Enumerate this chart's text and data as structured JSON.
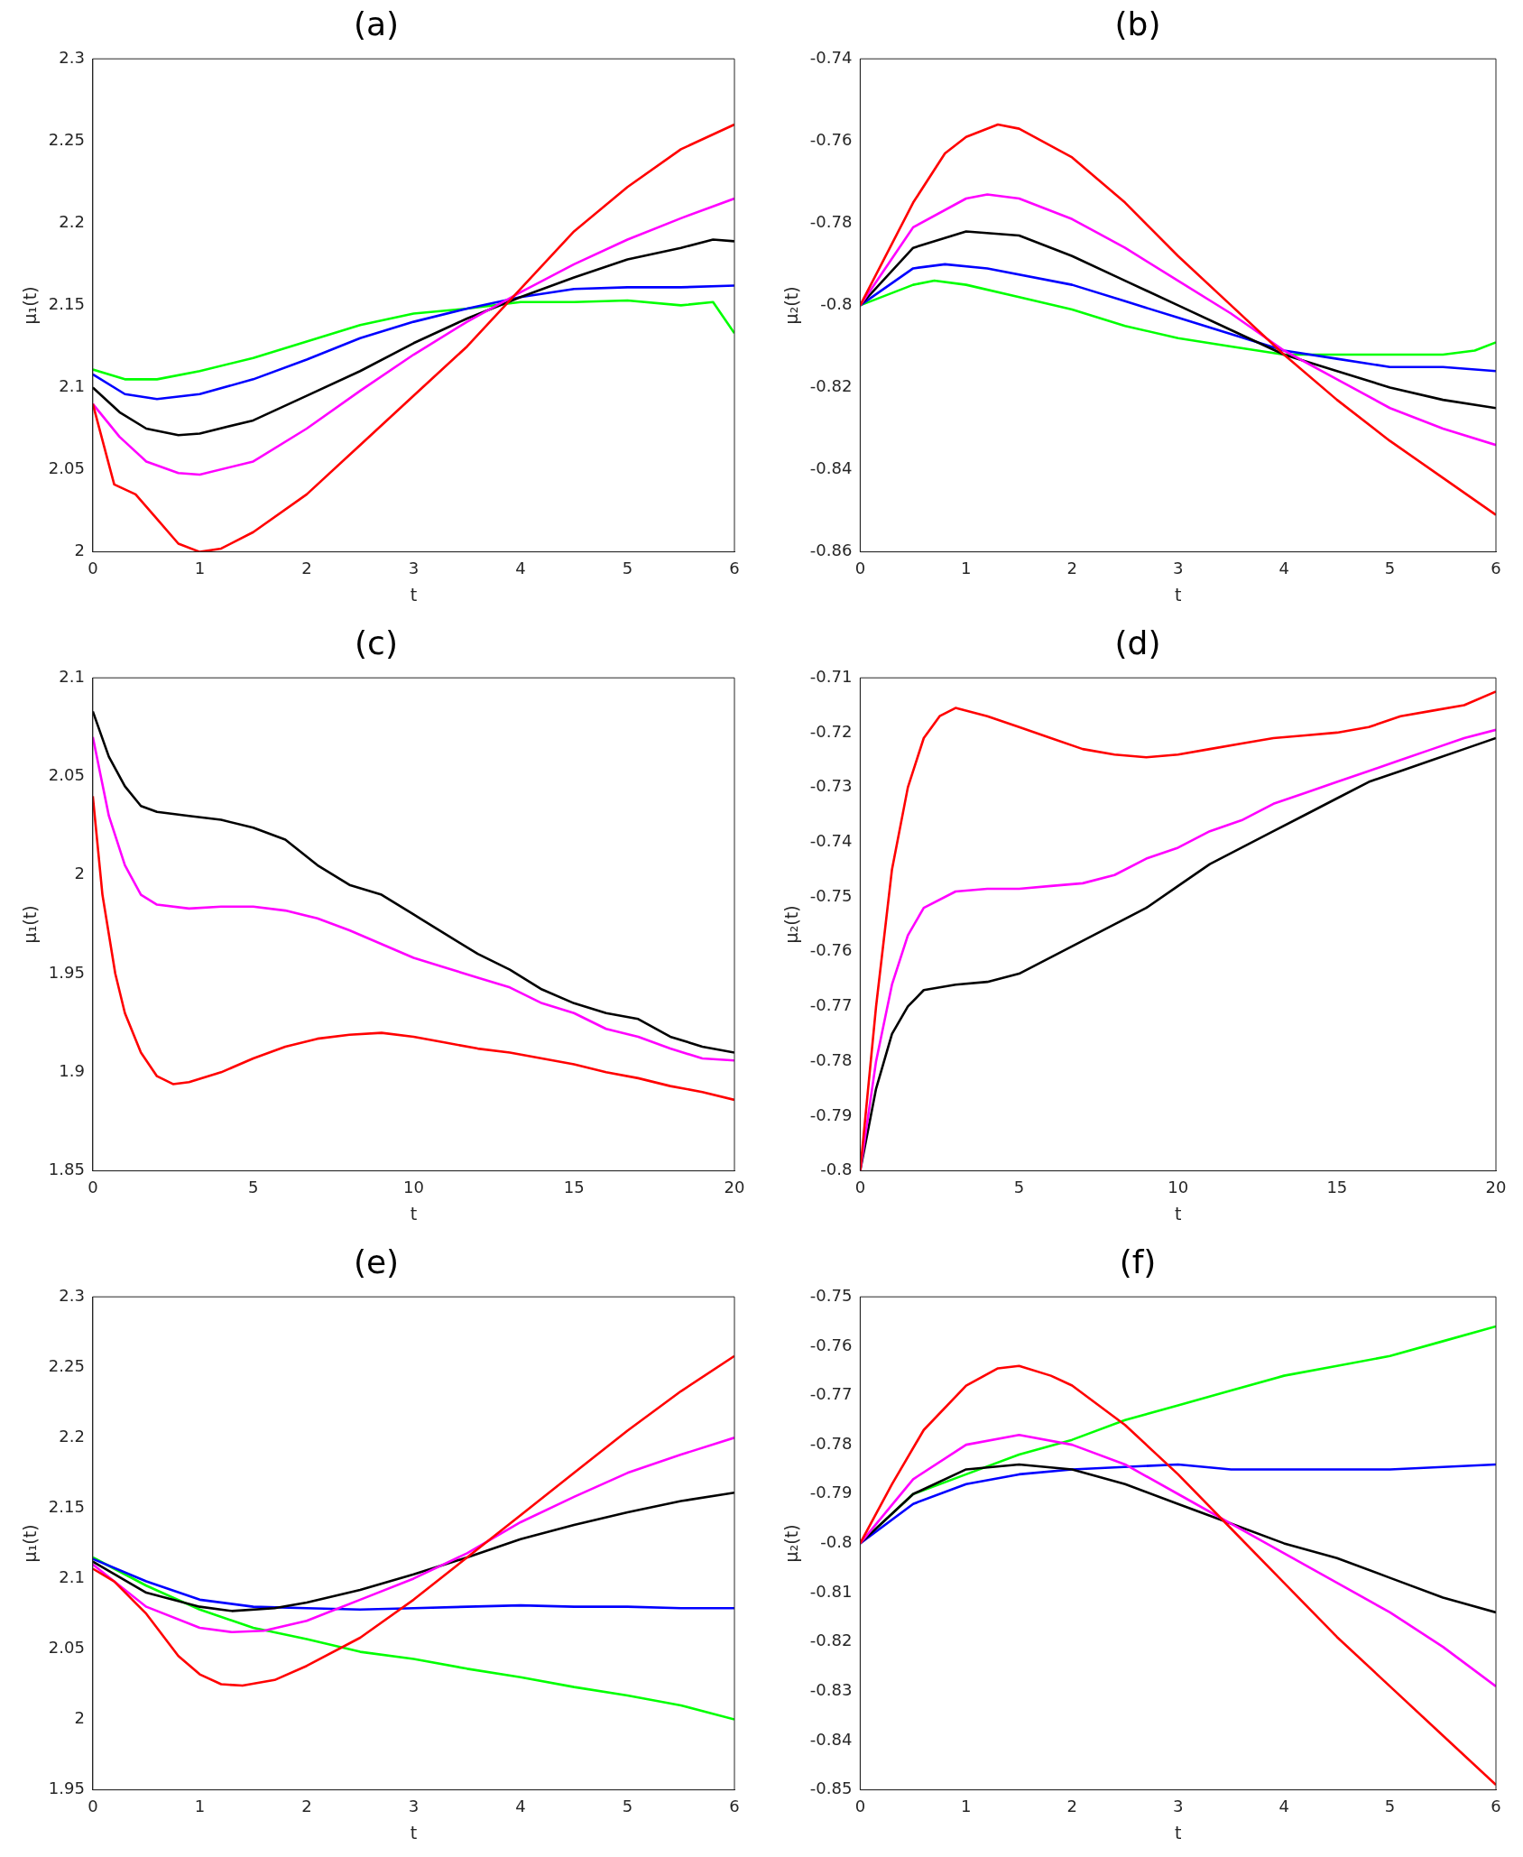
{
  "chart_data": [
    {
      "type": "line",
      "title": "(a)",
      "xlabel": "t",
      "ylabel": "μ₁(t)",
      "xlim": [
        0,
        6
      ],
      "xticks": [
        0,
        1,
        2,
        3,
        4,
        5,
        6
      ],
      "ylim": [
        2,
        2.3
      ],
      "yticks": [
        2,
        2.05,
        2.1,
        2.15,
        2.2,
        2.25,
        2.3
      ],
      "marker": "none",
      "series": [
        {
          "color": "#ff0000",
          "x": [
            0,
            0.2,
            0.4,
            0.6,
            0.8,
            1,
            1.2,
            1.5,
            2,
            2.5,
            3,
            3.5,
            4,
            4.5,
            5,
            5.5,
            6
          ],
          "values": [
            2.09,
            2.041,
            2.035,
            2.02,
            2.005,
            2,
            2.002,
            2.012,
            2.035,
            2.065,
            2.095,
            2.125,
            2.16,
            2.195,
            2.222,
            2.245,
            2.26
          ]
        },
        {
          "color": "#ff00ff",
          "x": [
            0,
            0.25,
            0.5,
            0.8,
            1,
            1.5,
            2,
            2.5,
            3,
            3.5,
            4,
            4.5,
            5,
            5.5,
            6
          ],
          "values": [
            2.09,
            2.07,
            2.055,
            2.048,
            2.047,
            2.055,
            2.075,
            2.098,
            2.12,
            2.14,
            2.158,
            2.175,
            2.19,
            2.203,
            2.215
          ]
        },
        {
          "color": "#000000",
          "x": [
            0,
            0.25,
            0.5,
            0.8,
            1,
            1.5,
            2,
            2.5,
            3,
            3.5,
            4,
            4.5,
            5,
            5.5,
            5.8,
            6
          ],
          "values": [
            2.1,
            2.085,
            2.075,
            2.071,
            2.072,
            2.08,
            2.095,
            2.11,
            2.127,
            2.142,
            2.155,
            2.167,
            2.178,
            2.185,
            2.19,
            2.189
          ]
        },
        {
          "color": "#0000ff",
          "x": [
            0,
            0.3,
            0.6,
            1,
            1.5,
            2,
            2.5,
            3,
            3.5,
            4,
            4.5,
            5,
            5.5,
            6
          ],
          "values": [
            2.108,
            2.096,
            2.093,
            2.096,
            2.105,
            2.117,
            2.13,
            2.14,
            2.148,
            2.155,
            2.16,
            2.161,
            2.161,
            2.162
          ]
        },
        {
          "color": "#00ff00",
          "x": [
            0,
            0.3,
            0.6,
            1,
            1.5,
            2,
            2.5,
            3,
            3.5,
            4,
            4.5,
            5,
            5.5,
            5.8,
            6
          ],
          "values": [
            2.111,
            2.105,
            2.105,
            2.11,
            2.118,
            2.128,
            2.138,
            2.145,
            2.148,
            2.152,
            2.152,
            2.153,
            2.15,
            2.152,
            2.133
          ]
        }
      ]
    },
    {
      "type": "line",
      "title": "(b)",
      "xlabel": "t",
      "ylabel": "μ₂(t)",
      "xlim": [
        0,
        6
      ],
      "xticks": [
        0,
        1,
        2,
        3,
        4,
        5,
        6
      ],
      "ylim": [
        -0.86,
        -0.74
      ],
      "yticks": [
        -0.86,
        -0.84,
        -0.82,
        -0.8,
        -0.78,
        -0.76,
        -0.74
      ],
      "marker": "none",
      "series": [
        {
          "color": "#ff0000",
          "x": [
            0,
            0.3,
            0.5,
            0.8,
            1,
            1.3,
            1.5,
            2,
            2.5,
            3,
            3.5,
            4,
            4.5,
            5,
            5.5,
            6
          ],
          "values": [
            -0.8,
            -0.785,
            -0.775,
            -0.763,
            -0.759,
            -0.756,
            -0.757,
            -0.764,
            -0.775,
            -0.788,
            -0.8,
            -0.812,
            -0.823,
            -0.833,
            -0.842,
            -0.851
          ]
        },
        {
          "color": "#ff00ff",
          "x": [
            0,
            0.5,
            1,
            1.2,
            1.5,
            2,
            2.5,
            3,
            3.5,
            4,
            4.5,
            5,
            5.5,
            6
          ],
          "values": [
            -0.8,
            -0.781,
            -0.774,
            -0.773,
            -0.774,
            -0.779,
            -0.786,
            -0.794,
            -0.802,
            -0.811,
            -0.818,
            -0.825,
            -0.83,
            -0.834
          ]
        },
        {
          "color": "#000000",
          "x": [
            0,
            0.5,
            1,
            1.5,
            2,
            2.5,
            3,
            3.5,
            4,
            4.5,
            5,
            5.5,
            6
          ],
          "values": [
            -0.8,
            -0.786,
            -0.782,
            -0.783,
            -0.788,
            -0.794,
            -0.8,
            -0.806,
            -0.812,
            -0.816,
            -0.82,
            -0.823,
            -0.825
          ]
        },
        {
          "color": "#0000ff",
          "x": [
            0,
            0.5,
            0.8,
            1.2,
            2,
            2.5,
            3,
            3.5,
            4,
            4.5,
            5,
            5.5,
            6
          ],
          "values": [
            -0.8,
            -0.791,
            -0.79,
            -0.791,
            -0.795,
            -0.799,
            -0.803,
            -0.807,
            -0.811,
            -0.813,
            -0.815,
            -0.815,
            -0.816
          ]
        },
        {
          "color": "#00ff00",
          "x": [
            0,
            0.5,
            0.7,
            1,
            1.5,
            2,
            2.5,
            3,
            3.5,
            4,
            4.5,
            5,
            5.5,
            5.8,
            6
          ],
          "values": [
            -0.8,
            -0.795,
            -0.794,
            -0.795,
            -0.798,
            -0.801,
            -0.805,
            -0.808,
            -0.81,
            -0.812,
            -0.812,
            -0.812,
            -0.812,
            -0.811,
            -0.809
          ]
        }
      ]
    },
    {
      "type": "line",
      "title": "(c)",
      "xlabel": "t",
      "ylabel": "μ₁(t)",
      "xlim": [
        0,
        20
      ],
      "xticks": [
        0,
        5,
        10,
        15,
        20
      ],
      "ylim": [
        1.85,
        2.1
      ],
      "yticks": [
        1.85,
        1.9,
        1.95,
        2,
        2.05,
        2.1
      ],
      "marker": "none",
      "series": [
        {
          "color": "#000000",
          "x": [
            0,
            0.5,
            1,
            1.5,
            2,
            3,
            4,
            5,
            6,
            7,
            8,
            9,
            10,
            11,
            12,
            13,
            14,
            15,
            16,
            17,
            18,
            19,
            20
          ],
          "values": [
            2.083,
            2.06,
            2.045,
            2.035,
            2.032,
            2.03,
            2.028,
            2.024,
            2.018,
            2.005,
            1.995,
            1.99,
            1.98,
            1.97,
            1.96,
            1.952,
            1.942,
            1.935,
            1.93,
            1.927,
            1.918,
            1.913,
            1.91
          ]
        },
        {
          "color": "#ff00ff",
          "x": [
            0,
            0.5,
            1,
            1.5,
            2,
            3,
            4,
            5,
            6,
            7,
            8,
            9,
            10,
            11,
            12,
            13,
            14,
            15,
            16,
            17,
            18,
            19,
            20
          ],
          "values": [
            2.07,
            2.03,
            2.005,
            1.99,
            1.985,
            1.983,
            1.984,
            1.984,
            1.982,
            1.978,
            1.972,
            1.965,
            1.958,
            1.953,
            1.948,
            1.943,
            1.935,
            1.93,
            1.922,
            1.918,
            1.912,
            1.907,
            1.906
          ]
        },
        {
          "color": "#ff0000",
          "x": [
            0,
            0.3,
            0.7,
            1,
            1.5,
            2,
            2.5,
            3,
            4,
            5,
            6,
            7,
            8,
            9,
            10,
            11,
            12,
            13,
            14,
            15,
            16,
            17,
            18,
            19,
            20
          ],
          "values": [
            2.04,
            1.99,
            1.95,
            1.93,
            1.91,
            1.898,
            1.894,
            1.895,
            1.9,
            1.907,
            1.913,
            1.917,
            1.919,
            1.92,
            1.918,
            1.915,
            1.912,
            1.91,
            1.907,
            1.904,
            1.9,
            1.897,
            1.893,
            1.89,
            1.886
          ]
        }
      ]
    },
    {
      "type": "line",
      "title": "(d)",
      "xlabel": "t",
      "ylabel": "μ₂(t)",
      "xlim": [
        0,
        20
      ],
      "xticks": [
        0,
        5,
        10,
        15,
        20
      ],
      "ylim": [
        -0.8,
        -0.71
      ],
      "yticks": [
        -0.8,
        -0.79,
        -0.78,
        -0.77,
        -0.76,
        -0.75,
        -0.74,
        -0.73,
        -0.72,
        -0.71
      ],
      "marker": "none",
      "series": [
        {
          "color": "#ff0000",
          "x": [
            0,
            0.5,
            1,
            1.5,
            2,
            2.5,
            3,
            4,
            5,
            6,
            7,
            8,
            9,
            10,
            11,
            12,
            13,
            14,
            15,
            16,
            17,
            18,
            19,
            20
          ],
          "values": [
            -0.8,
            -0.77,
            -0.745,
            -0.73,
            -0.721,
            -0.717,
            -0.7155,
            -0.717,
            -0.719,
            -0.721,
            -0.723,
            -0.724,
            -0.7245,
            -0.724,
            -0.723,
            -0.722,
            -0.721,
            -0.7205,
            -0.72,
            -0.719,
            -0.717,
            -0.716,
            -0.715,
            -0.7125
          ]
        },
        {
          "color": "#ff00ff",
          "x": [
            0,
            0.5,
            1,
            1.5,
            2,
            3,
            4,
            5,
            6,
            7,
            8,
            9,
            10,
            11,
            12,
            13,
            14,
            15,
            16,
            17,
            18,
            19,
            20
          ],
          "values": [
            -0.8,
            -0.78,
            -0.766,
            -0.757,
            -0.752,
            -0.749,
            -0.7485,
            -0.7485,
            -0.748,
            -0.7475,
            -0.746,
            -0.743,
            -0.741,
            -0.738,
            -0.736,
            -0.733,
            -0.731,
            -0.729,
            -0.727,
            -0.725,
            -0.723,
            -0.721,
            -0.7195
          ]
        },
        {
          "color": "#000000",
          "x": [
            0,
            0.5,
            1,
            1.5,
            2,
            3,
            4,
            5,
            6,
            7,
            8,
            9,
            10,
            11,
            12,
            13,
            14,
            15,
            16,
            17,
            18,
            19,
            20
          ],
          "values": [
            -0.8,
            -0.785,
            -0.775,
            -0.77,
            -0.767,
            -0.766,
            -0.7655,
            -0.764,
            -0.761,
            -0.758,
            -0.755,
            -0.752,
            -0.748,
            -0.744,
            -0.741,
            -0.738,
            -0.735,
            -0.732,
            -0.729,
            -0.727,
            -0.725,
            -0.723,
            -0.721
          ]
        }
      ]
    },
    {
      "type": "line",
      "title": "(e)",
      "xlabel": "t",
      "ylabel": "μ₁(t)",
      "xlim": [
        0,
        6
      ],
      "xticks": [
        0,
        1,
        2,
        3,
        4,
        5,
        6
      ],
      "ylim": [
        1.95,
        2.3
      ],
      "yticks": [
        1.95,
        2,
        2.05,
        2.1,
        2.15,
        2.2,
        2.25,
        2.3
      ],
      "marker": "none",
      "series": [
        {
          "color": "#ff0000",
          "x": [
            0,
            0.2,
            0.5,
            0.8,
            1,
            1.2,
            1.4,
            1.7,
            2,
            2.5,
            3,
            3.5,
            4,
            4.5,
            5,
            5.5,
            6
          ],
          "values": [
            2.107,
            2.098,
            2.075,
            2.045,
            2.032,
            2.025,
            2.024,
            2.028,
            2.038,
            2.058,
            2.085,
            2.115,
            2.145,
            2.175,
            2.205,
            2.233,
            2.258
          ]
        },
        {
          "color": "#ff00ff",
          "x": [
            0,
            0.5,
            1,
            1.3,
            1.6,
            2,
            2.5,
            3,
            3.5,
            4,
            4.5,
            5,
            5.5,
            6
          ],
          "values": [
            2.11,
            2.08,
            2.065,
            2.062,
            2.063,
            2.07,
            2.085,
            2.1,
            2.118,
            2.14,
            2.158,
            2.175,
            2.188,
            2.2
          ]
        },
        {
          "color": "#000000",
          "x": [
            0,
            0.5,
            1,
            1.3,
            1.7,
            2,
            2.5,
            3,
            3.5,
            4,
            4.5,
            5,
            5.5,
            6
          ],
          "values": [
            2.112,
            2.09,
            2.08,
            2.077,
            2.079,
            2.083,
            2.092,
            2.103,
            2.115,
            2.128,
            2.138,
            2.147,
            2.155,
            2.161
          ]
        },
        {
          "color": "#0000ff",
          "x": [
            0,
            0.5,
            1,
            1.5,
            2,
            2.5,
            3,
            3.5,
            4,
            4.5,
            5,
            5.5,
            6
          ],
          "values": [
            2.114,
            2.098,
            2.085,
            2.08,
            2.079,
            2.078,
            2.079,
            2.08,
            2.081,
            2.08,
            2.08,
            2.079,
            2.079
          ]
        },
        {
          "color": "#00ff00",
          "x": [
            0,
            0.5,
            1,
            1.5,
            2,
            2.5,
            3,
            3.5,
            4,
            4.5,
            5,
            5.5,
            6
          ],
          "values": [
            2.115,
            2.095,
            2.078,
            2.065,
            2.057,
            2.048,
            2.043,
            2.036,
            2.03,
            2.023,
            2.017,
            2.01,
            2
          ]
        }
      ]
    },
    {
      "type": "line",
      "title": "(f)",
      "xlabel": "t",
      "ylabel": "μ₂(t)",
      "xlim": [
        0,
        6
      ],
      "xticks": [
        0,
        1,
        2,
        3,
        4,
        5,
        6
      ],
      "ylim": [
        -0.85,
        -0.75
      ],
      "yticks": [
        -0.85,
        -0.84,
        -0.83,
        -0.82,
        -0.81,
        -0.8,
        -0.79,
        -0.78,
        -0.77,
        -0.76,
        -0.75
      ],
      "marker": "none",
      "series": [
        {
          "color": "#ff0000",
          "x": [
            0,
            0.3,
            0.6,
            1,
            1.3,
            1.5,
            1.8,
            2,
            2.5,
            3,
            3.5,
            4,
            4.5,
            5,
            5.5,
            6
          ],
          "values": [
            -0.8,
            -0.788,
            -0.777,
            -0.768,
            -0.7645,
            -0.764,
            -0.766,
            -0.768,
            -0.776,
            -0.786,
            -0.797,
            -0.808,
            -0.819,
            -0.829,
            -0.839,
            -0.849
          ]
        },
        {
          "color": "#ff00ff",
          "x": [
            0,
            0.5,
            1,
            1.5,
            2,
            2.5,
            3,
            3.5,
            4,
            4.5,
            5,
            5.5,
            6
          ],
          "values": [
            -0.8,
            -0.787,
            -0.78,
            -0.778,
            -0.78,
            -0.784,
            -0.79,
            -0.796,
            -0.802,
            -0.808,
            -0.814,
            -0.821,
            -0.829
          ]
        },
        {
          "color": "#000000",
          "x": [
            0,
            0.5,
            1,
            1.5,
            2,
            2.5,
            3,
            3.5,
            4,
            4.5,
            5,
            5.5,
            6
          ],
          "values": [
            -0.8,
            -0.79,
            -0.785,
            -0.784,
            -0.785,
            -0.788,
            -0.792,
            -0.796,
            -0.8,
            -0.803,
            -0.807,
            -0.811,
            -0.814
          ]
        },
        {
          "color": "#0000ff",
          "x": [
            0,
            0.5,
            1,
            1.5,
            2,
            3,
            3.5,
            4,
            5,
            6
          ],
          "values": [
            -0.8,
            -0.792,
            -0.788,
            -0.786,
            -0.785,
            -0.784,
            -0.785,
            -0.785,
            -0.785,
            -0.784
          ]
        },
        {
          "color": "#00ff00",
          "x": [
            0,
            0.5,
            1,
            1.5,
            2,
            2.5,
            3,
            3.5,
            4,
            4.5,
            5,
            5.5,
            6
          ],
          "values": [
            -0.8,
            -0.79,
            -0.786,
            -0.782,
            -0.779,
            -0.775,
            -0.772,
            -0.769,
            -0.766,
            -0.764,
            -0.762,
            -0.759,
            -0.756
          ]
        }
      ]
    }
  ]
}
